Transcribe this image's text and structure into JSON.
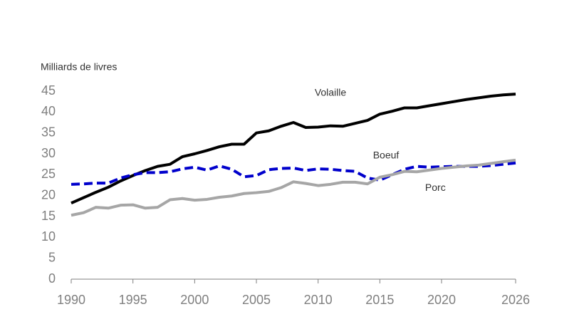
{
  "chart_data": {
    "type": "line",
    "y_label": "Milliards de livres",
    "x": [
      1990,
      1991,
      1992,
      1993,
      1994,
      1995,
      1996,
      1997,
      1998,
      1999,
      2000,
      2001,
      2002,
      2003,
      2004,
      2005,
      2006,
      2007,
      2008,
      2009,
      2010,
      2011,
      2012,
      2013,
      2014,
      2015,
      2016,
      2017,
      2018,
      2019,
      2020,
      2021,
      2022,
      2023,
      2024,
      2025,
      2026
    ],
    "series": [
      {
        "name": "Volaille",
        "color": "#000000",
        "style": "solid",
        "values": [
          18.2,
          19.5,
          20.8,
          22,
          23.5,
          24.8,
          26,
          27,
          27.5,
          29.3,
          30,
          30.8,
          31.7,
          32.3,
          32.3,
          35,
          35.5,
          36.6,
          37.5,
          36.3,
          36.4,
          36.7,
          36.6,
          37.3,
          38,
          39.5,
          40.2,
          41,
          41,
          41.5,
          42,
          42.5,
          43,
          43.4,
          43.8,
          44.1,
          44.3
        ]
      },
      {
        "name": "Boeuf",
        "color": "#0000cc",
        "style": "dashed",
        "values": [
          22.7,
          22.8,
          23,
          23,
          24.2,
          25,
          25.5,
          25.5,
          25.7,
          26.4,
          26.8,
          26.1,
          27.1,
          26.3,
          24.5,
          24.8,
          26.2,
          26.5,
          26.6,
          26,
          26.4,
          26.3,
          26,
          25.8,
          24.2,
          23.7,
          25,
          26.3,
          27,
          26.8,
          26.9,
          27,
          27,
          27,
          27.2,
          27.5,
          27.8
        ]
      },
      {
        "name": "Porc",
        "color": "#a6a6a6",
        "style": "solid",
        "values": [
          15.3,
          15.9,
          17.2,
          17,
          17.7,
          17.8,
          17,
          17.2,
          19,
          19.3,
          18.9,
          19.1,
          19.6,
          19.9,
          20.5,
          20.7,
          21,
          21.9,
          23.3,
          22.9,
          22.4,
          22.7,
          23.2,
          23.2,
          22.8,
          24.4,
          25,
          25.8,
          25.7,
          26.1,
          26.5,
          26.8,
          27.1,
          27.3,
          27.7,
          28.1,
          28.5
        ]
      }
    ],
    "xlim": [
      1990,
      2026
    ],
    "xticks": [
      1990,
      1995,
      2000,
      2005,
      2010,
      2015,
      2020,
      2026
    ],
    "ylim": [
      0,
      45
    ],
    "yticks": [
      0,
      5,
      10,
      15,
      20,
      25,
      30,
      35,
      40,
      45
    ],
    "grid": false
  }
}
